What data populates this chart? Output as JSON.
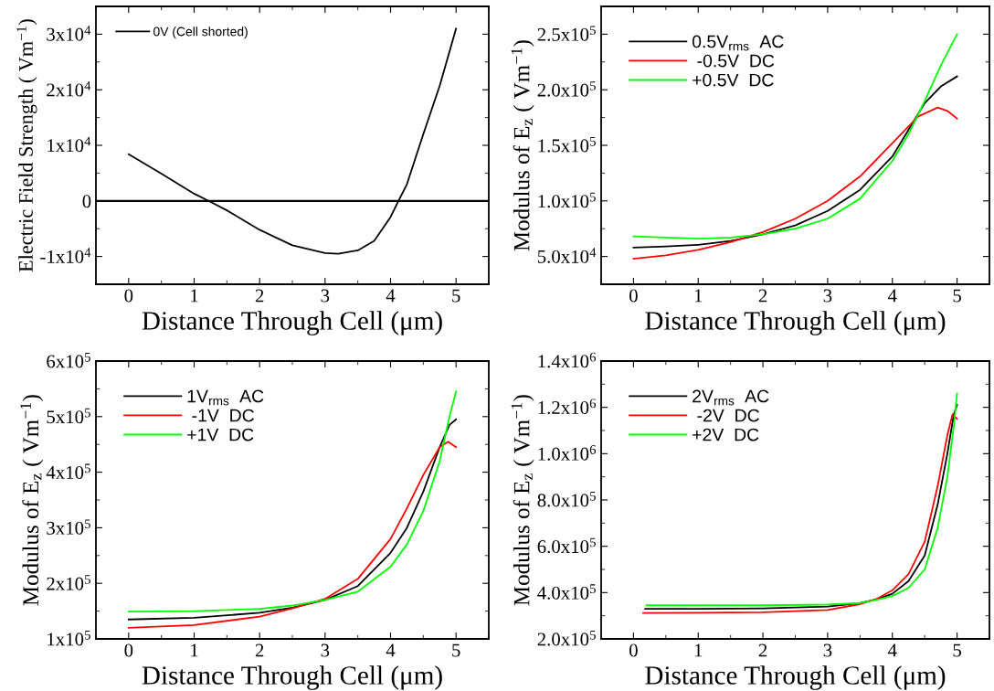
{
  "chart_data": [
    {
      "type": "line",
      "xlabel": "Distance Through Cell (μm)",
      "ylabel": "Electric Field Strength ( Vm$^{−1}$)",
      "xlim": [
        -0.5,
        5.5
      ],
      "xticks": [
        0,
        1,
        2,
        3,
        4,
        5
      ],
      "ylim": [
        -15000,
        35000
      ],
      "yticks": [
        {
          "value": -10000,
          "label": "-1x10$^{4}$"
        },
        {
          "value": 0,
          "label": "0"
        },
        {
          "value": 10000,
          "label": "1x10$^{4}$"
        },
        {
          "value": 20000,
          "label": "2x10$^{4}$"
        },
        {
          "value": 30000,
          "label": "3x10$^{4}$"
        }
      ],
      "legend": "top left",
      "series": [
        {
          "name": "0V (Cell shorted)",
          "color": "#000000",
          "x": [
            0,
            0.5,
            1,
            1.22,
            1.5,
            2,
            2.5,
            3,
            3.2,
            3.5,
            3.75,
            4,
            4.12,
            4.25,
            4.5,
            4.75,
            5
          ],
          "values": [
            8400,
            4900,
            1300,
            0,
            -1700,
            -5200,
            -8000,
            -9400,
            -9500,
            -8900,
            -7200,
            -2900,
            0,
            3000,
            12000,
            20700,
            31000
          ]
        }
      ],
      "ref_lines": [
        {
          "axis": "y",
          "value": 0,
          "color": "#000000"
        }
      ]
    },
    {
      "type": "line",
      "xlabel": "Distance Through Cell (μm)",
      "ylabel": "Modulus of E$_{z}$ ( Vm$^{−1}$)",
      "xlim": [
        -0.5,
        5.5
      ],
      "xticks": [
        0,
        1,
        2,
        3,
        4,
        5
      ],
      "ylim": [
        25000,
        275000
      ],
      "yticks": [
        {
          "value": 50000,
          "label": "5.0x10$^{4}$"
        },
        {
          "value": 100000,
          "label": "1.0x10$^{5}$"
        },
        {
          "value": 150000,
          "label": "1.5x10$^{5}$"
        },
        {
          "value": 200000,
          "label": "2.0x10$^{5}$"
        },
        {
          "value": 250000,
          "label": "2.5x10$^{5}$"
        }
      ],
      "legend": "top left",
      "series": [
        {
          "name": "0.5V$_{rms}$  AC",
          "color": "#000000",
          "x": [
            0,
            0.5,
            1,
            1.5,
            2,
            2.5,
            3,
            3.5,
            4,
            4.5,
            4.75,
            5
          ],
          "values": [
            58000,
            59000,
            60500,
            64000,
            70000,
            78000,
            91000,
            110000,
            140000,
            188000,
            203000,
            212000
          ]
        },
        {
          "name": " -0.5V  DC",
          "color": "#ff0000",
          "x": [
            0,
            0.5,
            1,
            1.5,
            2,
            2.5,
            3,
            3.5,
            4,
            4.4,
            4.7,
            4.85,
            5
          ],
          "values": [
            48000,
            51000,
            56000,
            63000,
            72000,
            84000,
            100000,
            122000,
            152000,
            176000,
            184000,
            181000,
            174000
          ]
        },
        {
          "name": "+0.5V  DC",
          "color": "#00ff00",
          "x": [
            0,
            0.5,
            1,
            1.5,
            2,
            2.5,
            3,
            3.5,
            4,
            4.25,
            4.5,
            4.75,
            5
          ],
          "values": [
            68000,
            67000,
            66000,
            67000,
            70000,
            75000,
            84000,
            102000,
            136000,
            160000,
            190000,
            222000,
            250000
          ]
        }
      ]
    },
    {
      "type": "line",
      "xlabel": "Distance Through Cell (μm)",
      "ylabel": "Modulus of E$_{z}$ ( Vm$^{−1}$)",
      "xlim": [
        -0.5,
        5.5
      ],
      "xticks": [
        0,
        1,
        2,
        3,
        4,
        5
      ],
      "ylim": [
        100000,
        600000
      ],
      "yticks": [
        {
          "value": 100000,
          "label": "1x10$^{5}$"
        },
        {
          "value": 200000,
          "label": "2x10$^{5}$"
        },
        {
          "value": 300000,
          "label": "3x10$^{5}$"
        },
        {
          "value": 400000,
          "label": "4x10$^{5}$"
        },
        {
          "value": 500000,
          "label": "5x10$^{5}$"
        },
        {
          "value": 600000,
          "label": "6x10$^{5}$"
        }
      ],
      "legend": "top left",
      "series": [
        {
          "name": "1V$_{rms}$  AC",
          "color": "#000000",
          "x": [
            0,
            1,
            2,
            2.5,
            3,
            3.5,
            4,
            4.25,
            4.5,
            4.75,
            4.9,
            5
          ],
          "values": [
            135000,
            138000,
            147000,
            156000,
            170000,
            195000,
            255000,
            300000,
            365000,
            445000,
            485000,
            495000
          ]
        },
        {
          "name": " -1V  DC",
          "color": "#ff0000",
          "x": [
            0,
            1,
            2,
            2.5,
            3,
            3.5,
            4,
            4.25,
            4.5,
            4.75,
            4.88,
            5
          ],
          "values": [
            120000,
            125000,
            140000,
            155000,
            172000,
            208000,
            280000,
            335000,
            395000,
            445000,
            455000,
            445000
          ]
        },
        {
          "name": "+1V  DC",
          "color": "#00ff00",
          "x": [
            0,
            1,
            2,
            2.5,
            3,
            3.5,
            4,
            4.25,
            4.5,
            4.75,
            4.9,
            5
          ],
          "values": [
            149000,
            150000,
            154000,
            160000,
            170000,
            185000,
            230000,
            270000,
            330000,
            420000,
            500000,
            545000
          ]
        }
      ]
    },
    {
      "type": "line",
      "xlabel": "Distance Through Cell (μm)",
      "ylabel": "Modulus of E$_{z}$ ( Vm$^{−1}$)",
      "xlim": [
        -0.5,
        5.5
      ],
      "xticks": [
        0,
        1,
        2,
        3,
        4,
        5
      ],
      "ylim": [
        200000,
        1400000
      ],
      "yticks": [
        {
          "value": 200000,
          "label": "2.0x10$^{5}$"
        },
        {
          "value": 400000,
          "label": "4.0x10$^{5}$"
        },
        {
          "value": 600000,
          "label": "6.0x10$^{5}$"
        },
        {
          "value": 800000,
          "label": "8.0x10$^{5}$"
        },
        {
          "value": 1000000,
          "label": "1.0x10$^{6}$"
        },
        {
          "value": 1200000,
          "label": "1.2x10$^{6}$"
        },
        {
          "value": 1400000,
          "label": "1.4x10$^{6}$"
        }
      ],
      "legend": "top left",
      "series": [
        {
          "name": "2V$_{rms}$  AC",
          "color": "#000000",
          "x": [
            0.18,
            1,
            2,
            3,
            3.5,
            3.75,
            4,
            4.25,
            4.5,
            4.7,
            4.85,
            4.95,
            5
          ],
          "values": [
            330000,
            330000,
            332000,
            340000,
            355000,
            370000,
            395000,
            450000,
            560000,
            780000,
            1000000,
            1170000,
            1210000
          ]
        },
        {
          "name": " -2V  DC",
          "color": "#ff0000",
          "x": [
            0.15,
            1,
            2,
            3,
            3.5,
            3.75,
            4,
            4.25,
            4.5,
            4.7,
            4.85,
            4.93,
            5
          ],
          "values": [
            312000,
            313000,
            315000,
            325000,
            350000,
            372000,
            410000,
            480000,
            620000,
            860000,
            1080000,
            1170000,
            1150000
          ]
        },
        {
          "name": "+2V  DC",
          "color": "#00ff00",
          "x": [
            0.2,
            1,
            2,
            3,
            3.5,
            3.75,
            4,
            4.25,
            4.5,
            4.7,
            4.85,
            4.95,
            5
          ],
          "values": [
            345000,
            345000,
            345000,
            348000,
            355000,
            368000,
            385000,
            420000,
            500000,
            680000,
            900000,
            1120000,
            1260000
          ]
        }
      ]
    }
  ]
}
